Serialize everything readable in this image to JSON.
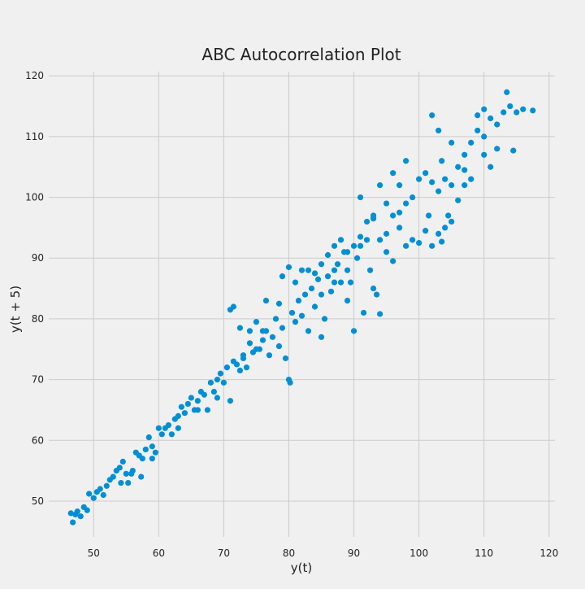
{
  "chart_data": {
    "type": "scatter",
    "title": "ABC Autocorrelation Plot",
    "x_label": "y(t)",
    "y_label": "y(t + 5)",
    "color": "#008fd5",
    "grid": true,
    "xlim": [
      43.1,
      120.9
    ],
    "ylim": [
      44.1,
      120.7
    ],
    "xticks": [
      50,
      60,
      70,
      80,
      90,
      100,
      110,
      120
    ],
    "yticks": [
      50,
      60,
      70,
      80,
      90,
      100,
      110,
      120
    ],
    "x": [
      46.5,
      46.8,
      47.2,
      47.5,
      48,
      48.5,
      49,
      49.3,
      50,
      50.5,
      51,
      51.5,
      52,
      52.5,
      53,
      53.5,
      54,
      54.5,
      55,
      55.3,
      54.2,
      56,
      56.5,
      57,
      57.5,
      58,
      58.5,
      59,
      59.5,
      59,
      57.3,
      55.8,
      60.5,
      61,
      61.5,
      62,
      62.5,
      63,
      63.5,
      64,
      64.5,
      65,
      65.5,
      66,
      66.5,
      67,
      67.5,
      68,
      68.5,
      69,
      69.5,
      70,
      70.5,
      71,
      71.5,
      72,
      72.5,
      73,
      73.5,
      74,
      74.5,
      75,
      75.5,
      76,
      76.5,
      77,
      77.5,
      71,
      71.5,
      72.5,
      74,
      78,
      78.5,
      79,
      79.5,
      80,
      80.2,
      80.5,
      81,
      81.5,
      82,
      82.5,
      83,
      83.5,
      84,
      84.5,
      85,
      85.5,
      86,
      86.5,
      87,
      87.5,
      88,
      88.5,
      89,
      89.5,
      90,
      90.5,
      91,
      91.5,
      92,
      92.5,
      93,
      93.5,
      94,
      79,
      80,
      82,
      78.5,
      76.5,
      84,
      85,
      86,
      87,
      88,
      89,
      90,
      91,
      92,
      93,
      94,
      95,
      96,
      97,
      98,
      99,
      100,
      101,
      102,
      103,
      104,
      105,
      106,
      107,
      108,
      109,
      110,
      111,
      112,
      113,
      114,
      115,
      116,
      117.5,
      113.5,
      112,
      114.5,
      107,
      109,
      110,
      105,
      103,
      102,
      103.5,
      98,
      99,
      101,
      102,
      103,
      103.5,
      104.5,
      101.5,
      97,
      96,
      95,
      94,
      91,
      100,
      104,
      105,
      106,
      107,
      108,
      110,
      111,
      96,
      97,
      98,
      95,
      93,
      81,
      83,
      85,
      87,
      89,
      75,
      76,
      73,
      69,
      66,
      63,
      60
    ],
    "values": [
      48,
      46.5,
      47.8,
      48.3,
      47.5,
      49,
      48.5,
      51.2,
      50.5,
      51.5,
      52,
      51,
      52.5,
      53.5,
      54,
      55,
      55.5,
      56.5,
      54.5,
      53,
      53,
      55,
      58,
      57.5,
      57,
      58.5,
      60.5,
      59,
      58,
      57,
      54,
      54.5,
      61,
      62,
      62.5,
      61,
      63.5,
      64,
      65.5,
      64.5,
      66,
      67,
      65,
      66.5,
      68,
      67.5,
      65,
      69.5,
      68,
      70,
      71,
      69.5,
      72,
      66.5,
      73,
      72.5,
      71.5,
      73.5,
      72,
      76,
      74.5,
      79.5,
      75,
      76.5,
      78,
      74,
      77,
      81.5,
      82,
      78.5,
      78,
      80,
      75.5,
      78.5,
      73.5,
      70,
      69.5,
      81,
      79.5,
      83,
      80.5,
      84,
      78,
      85,
      82,
      86.5,
      77,
      80,
      87,
      84.5,
      88,
      89,
      86,
      91,
      83,
      86,
      78,
      90,
      92,
      81,
      93,
      88,
      85,
      84,
      80.8,
      87,
      88.5,
      88,
      82.5,
      83,
      87.5,
      89,
      90.5,
      92,
      93,
      91,
      92,
      93.5,
      96,
      96.5,
      93,
      94,
      97,
      95,
      99,
      100,
      103,
      104,
      102.5,
      101,
      103,
      102,
      105,
      107,
      109,
      111,
      110,
      113,
      112,
      114,
      115,
      114,
      114.5,
      114.3,
      117.3,
      108,
      107.7,
      104.5,
      113.5,
      114.5,
      109,
      111,
      113.5,
      106,
      92,
      93,
      94.5,
      92,
      94,
      92.7,
      97,
      97,
      97.5,
      89.5,
      91,
      102,
      100,
      92.5,
      95,
      96,
      99.5,
      102,
      103,
      107,
      105,
      104,
      102,
      106,
      99,
      97,
      86,
      88,
      84,
      86,
      88,
      75,
      78,
      74,
      67,
      65,
      62,
      62
    ]
  }
}
